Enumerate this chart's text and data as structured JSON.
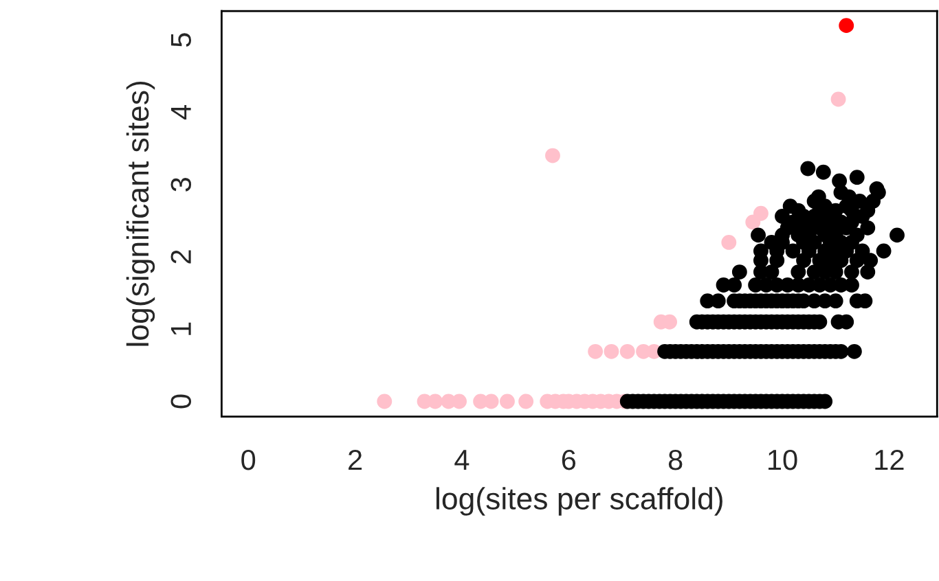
{
  "chart_data": {
    "type": "scatter",
    "xlabel": "log(sites per scaffold)",
    "ylabel": "log(significant sites)",
    "xlim": [
      -0.5,
      12.9
    ],
    "ylim": [
      -0.21,
      5.4
    ],
    "xticks": [
      0,
      2,
      4,
      6,
      8,
      10,
      12
    ],
    "yticks": [
      0,
      1,
      2,
      3,
      4,
      5
    ],
    "grid": false,
    "legend": false,
    "marker": "circle",
    "series": [
      {
        "color": "#ffc0cb",
        "x": [
          2.55,
          3.3,
          3.5,
          3.75,
          3.95,
          4.35,
          4.55,
          4.85,
          5.2,
          5.6,
          5.75,
          5.9,
          6.0,
          6.15,
          6.3,
          6.45,
          6.6,
          6.75,
          6.9,
          7.05,
          6.5,
          6.8,
          7.1,
          7.4,
          7.6,
          7.73,
          7.89,
          5.7,
          9.0,
          9.45,
          9.6,
          11.05
        ],
        "values": [
          0,
          0,
          0,
          0,
          0,
          0,
          0,
          0,
          0,
          0,
          0,
          0,
          0,
          0,
          0,
          0,
          0,
          0,
          0,
          0,
          0.69,
          0.69,
          0.69,
          0.69,
          0.69,
          1.1,
          1.1,
          3.4,
          2.2,
          2.48,
          2.6,
          4.18
        ]
      },
      {
        "color": "#000000",
        "x": [
          7.1,
          7.2,
          7.3,
          7.4,
          7.5,
          7.6,
          7.7,
          7.8,
          7.9,
          8.0,
          8.1,
          8.2,
          8.3,
          8.4,
          8.5,
          8.6,
          8.7,
          8.8,
          8.9,
          9.0,
          9.1,
          9.2,
          9.3,
          9.4,
          9.5,
          9.6,
          9.7,
          9.8,
          9.9,
          10.0,
          10.1,
          10.2,
          10.3,
          10.4,
          10.5,
          10.6,
          10.7,
          10.8,
          7.8,
          7.9,
          8.0,
          8.1,
          8.2,
          8.3,
          8.4,
          8.5,
          8.6,
          8.7,
          8.8,
          8.9,
          9.0,
          9.1,
          9.2,
          9.3,
          9.4,
          9.5,
          9.6,
          9.7,
          9.8,
          9.9,
          10.0,
          10.1,
          10.2,
          10.3,
          10.4,
          10.5,
          10.6,
          10.7,
          10.8,
          10.9,
          11.0,
          11.1,
          11.35,
          8.4,
          8.5,
          8.6,
          8.7,
          8.8,
          8.9,
          9.0,
          9.1,
          9.2,
          9.3,
          9.4,
          9.5,
          9.6,
          9.7,
          9.8,
          9.9,
          10.0,
          10.1,
          10.2,
          10.3,
          10.4,
          10.5,
          10.6,
          10.7,
          11.05,
          11.2,
          8.6,
          8.8,
          9.1,
          9.2,
          9.3,
          9.4,
          9.5,
          9.6,
          9.7,
          9.8,
          9.9,
          10.0,
          10.1,
          10.2,
          10.3,
          10.4,
          10.6,
          10.8,
          11.0,
          11.4,
          11.55,
          8.9,
          9.1,
          9.5,
          9.7,
          9.9,
          10.1,
          10.3,
          10.5,
          10.7,
          10.9,
          11.1,
          11.3,
          9.2,
          9.6,
          9.8,
          10.3,
          10.6,
          10.8,
          11.0,
          11.3,
          11.6,
          9.6,
          9.9,
          10.4,
          10.7,
          10.9,
          11.1,
          11.4,
          11.65,
          9.6,
          9.9,
          10.2,
          10.5,
          10.8,
          11.0,
          11.2,
          11.5,
          11.9,
          9.8,
          10.0,
          10.4,
          10.6,
          10.9,
          11.1,
          11.3,
          9.55,
          10.0,
          10.3,
          10.5,
          10.8,
          11.0,
          11.4,
          12.15,
          10.1,
          10.4,
          10.7,
          10.95,
          11.2,
          11.6,
          10.2,
          10.5,
          10.8,
          11.1,
          11.3,
          10.0,
          10.4,
          10.6,
          10.9,
          11.5,
          10.3,
          10.7,
          11.0,
          11.3,
          11.6,
          10.15,
          10.8,
          11.2,
          10.6,
          11.45,
          11.7,
          10.68,
          11.25,
          11.1,
          11.8,
          11.77,
          11.07,
          11.4,
          10.77,
          10.48
        ],
        "values": [
          0,
          0,
          0,
          0,
          0,
          0,
          0,
          0,
          0,
          0,
          0,
          0,
          0,
          0,
          0,
          0,
          0,
          0,
          0,
          0,
          0,
          0,
          0,
          0,
          0,
          0,
          0,
          0,
          0,
          0,
          0,
          0,
          0,
          0,
          0,
          0,
          0,
          0,
          0.69,
          0.69,
          0.69,
          0.69,
          0.69,
          0.69,
          0.69,
          0.69,
          0.69,
          0.69,
          0.69,
          0.69,
          0.69,
          0.69,
          0.69,
          0.69,
          0.69,
          0.69,
          0.69,
          0.69,
          0.69,
          0.69,
          0.69,
          0.69,
          0.69,
          0.69,
          0.69,
          0.69,
          0.69,
          0.69,
          0.69,
          0.69,
          0.69,
          0.69,
          0.69,
          1.1,
          1.1,
          1.1,
          1.1,
          1.1,
          1.1,
          1.1,
          1.1,
          1.1,
          1.1,
          1.1,
          1.1,
          1.1,
          1.1,
          1.1,
          1.1,
          1.1,
          1.1,
          1.1,
          1.1,
          1.1,
          1.1,
          1.1,
          1.1,
          1.1,
          1.1,
          1.39,
          1.39,
          1.39,
          1.39,
          1.39,
          1.39,
          1.39,
          1.39,
          1.39,
          1.39,
          1.39,
          1.39,
          1.39,
          1.39,
          1.39,
          1.39,
          1.39,
          1.39,
          1.39,
          1.39,
          1.39,
          1.61,
          1.61,
          1.61,
          1.61,
          1.61,
          1.61,
          1.61,
          1.61,
          1.61,
          1.61,
          1.61,
          1.61,
          1.79,
          1.79,
          1.79,
          1.79,
          1.79,
          1.79,
          1.79,
          1.79,
          1.79,
          1.95,
          1.95,
          1.95,
          1.95,
          1.95,
          1.95,
          1.95,
          1.95,
          2.08,
          2.08,
          2.08,
          2.08,
          2.08,
          2.08,
          2.08,
          2.08,
          2.08,
          2.2,
          2.2,
          2.2,
          2.2,
          2.2,
          2.2,
          2.2,
          2.3,
          2.3,
          2.3,
          2.3,
          2.3,
          2.3,
          2.3,
          2.3,
          2.4,
          2.4,
          2.4,
          2.4,
          2.4,
          2.4,
          2.48,
          2.48,
          2.48,
          2.48,
          2.48,
          2.56,
          2.56,
          2.56,
          2.56,
          2.56,
          2.64,
          2.64,
          2.64,
          2.64,
          2.64,
          2.7,
          2.7,
          2.7,
          2.77,
          2.77,
          2.77,
          2.83,
          2.83,
          2.89,
          2.89,
          2.94,
          3.05,
          3.1,
          3.17,
          3.22
        ]
      },
      {
        "color": "#ff0000",
        "x": [
          11.2
        ],
        "values": [
          5.2
        ]
      }
    ]
  }
}
